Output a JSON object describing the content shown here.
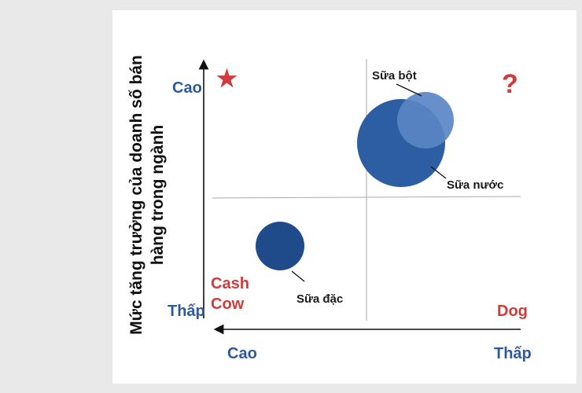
{
  "y_axis": {
    "title_line1": "Mức tăng trưởng của doanh số bán",
    "title_line2": "hàng trong ngành",
    "high_label": "Cao",
    "low_label": "Thấp"
  },
  "x_axis": {
    "high_label": "Cao",
    "low_label": "Thấp"
  },
  "quadrants": {
    "star_symbol": "★",
    "question_symbol": "?",
    "cash_cow_line1": "Cash",
    "cash_cow_line2": "Cow",
    "dog_label": "Dog"
  },
  "products": {
    "sua_bot": "Sữa bột",
    "sua_nuoc": "Sữa nước",
    "sua_dac": "Sữa đặc"
  },
  "colors": {
    "blue_text": "#2f5a9a",
    "red_text": "#d33a3a",
    "bubble_dark": "#1f4b8a",
    "bubble_mid": "#2d5ea3",
    "bubble_light": "#5a86c4"
  }
}
